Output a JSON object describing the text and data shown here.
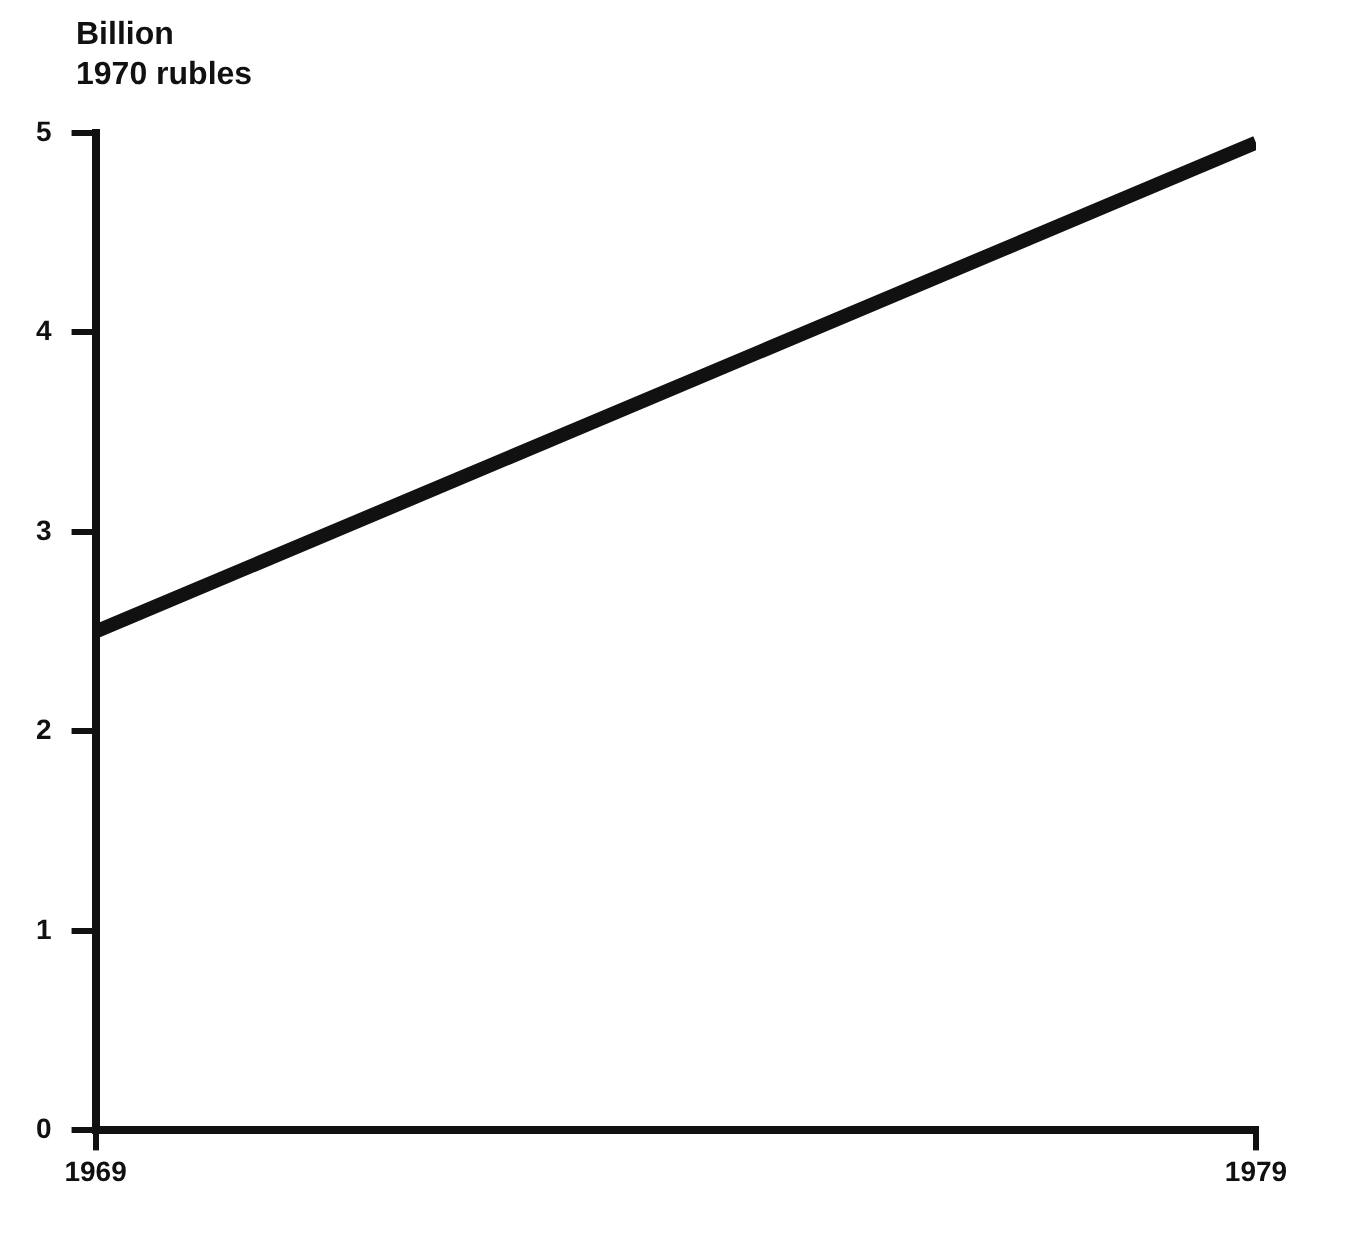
{
  "chart_data": {
    "type": "line",
    "ylabel": "Billion\n1970 rubles",
    "x": [
      1969,
      1979
    ],
    "series": [
      {
        "color": "#111111",
        "values": [
          2.5,
          4.95
        ]
      }
    ],
    "xlim": [
      1969,
      1979
    ],
    "xticks": [
      1969,
      1979
    ],
    "ylim": [
      0,
      5
    ],
    "yticks": [
      0,
      1,
      2,
      3,
      4,
      5
    ],
    "grid": false,
    "legend": false,
    "marker": "none",
    "line_style": "solid"
  }
}
